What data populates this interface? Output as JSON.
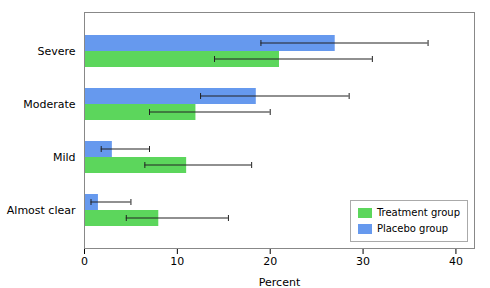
{
  "chart_data": {
    "type": "bar",
    "orientation": "horizontal",
    "categories": [
      "Almost clear",
      "Mild",
      "Moderate",
      "Severe"
    ],
    "series": [
      {
        "name": "Placebo group",
        "color": "#6699ee",
        "values": [
          1.5,
          3.0,
          18.5,
          27.0
        ],
        "error_low": [
          0.8,
          1.2,
          6.0,
          8.0
        ],
        "error_high": [
          3.5,
          4.0,
          10.0,
          10.0
        ]
      },
      {
        "name": "Treatment group",
        "color": "#5cd65c",
        "values": [
          8.0,
          11.0,
          12.0,
          21.0
        ],
        "error_low": [
          3.5,
          4.5,
          5.0,
          7.0
        ],
        "error_high": [
          7.5,
          7.0,
          8.0,
          10.0
        ]
      }
    ],
    "xlabel": "Percent",
    "xlim": [
      0,
      42
    ],
    "xticks": [
      0,
      10,
      20,
      30,
      40
    ],
    "grid": false,
    "legend": "lower right"
  }
}
